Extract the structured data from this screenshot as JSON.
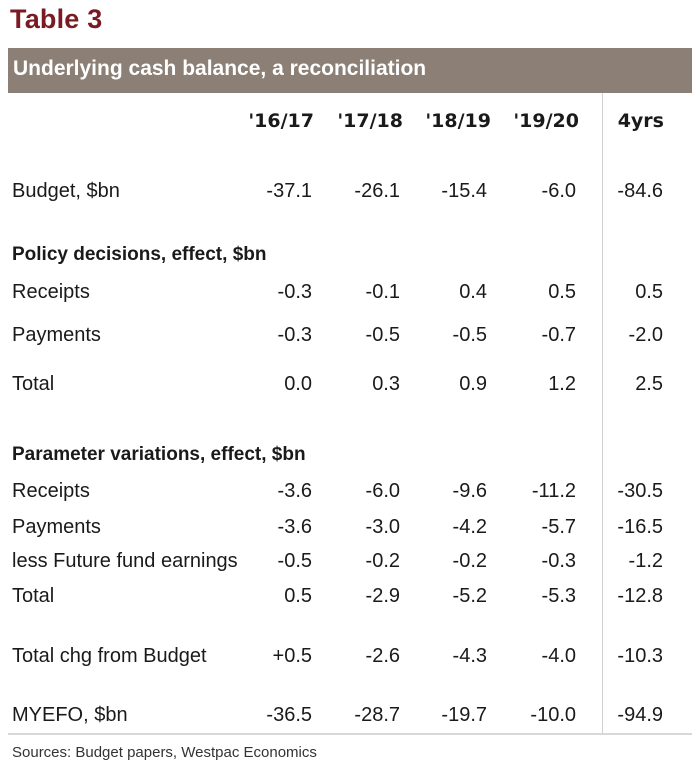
{
  "title": "Table 3",
  "subtitle": "Underlying cash balance, a reconciliation",
  "columns": [
    "'16/17",
    "'17/18",
    "'18/19",
    "'19/20",
    "4yrs"
  ],
  "rows": [
    {
      "type": "data",
      "label": "Budget, $bn",
      "values": [
        "-37.1",
        "-26.1",
        "-15.4",
        "-6.0",
        "-84.6"
      ]
    },
    {
      "type": "section",
      "label": "Policy decisions, effect, $bn",
      "values": []
    },
    {
      "type": "data",
      "label": "Receipts",
      "values": [
        "-0.3",
        "-0.1",
        "0.4",
        "0.5",
        "0.5"
      ]
    },
    {
      "type": "data",
      "label": "Payments",
      "values": [
        "-0.3",
        "-0.5",
        "-0.5",
        "-0.7",
        "-2.0"
      ]
    },
    {
      "type": "data",
      "label": "Total",
      "values": [
        "0.0",
        "0.3",
        "0.9",
        "1.2",
        "2.5"
      ]
    },
    {
      "type": "section",
      "label": "Parameter variations, effect, $bn",
      "values": []
    },
    {
      "type": "data",
      "label": "Receipts",
      "values": [
        "-3.6",
        "-6.0",
        "-9.6",
        "-11.2",
        "-30.5"
      ]
    },
    {
      "type": "data",
      "label": "Payments",
      "values": [
        "-3.6",
        "-3.0",
        "-4.2",
        "-5.7",
        "-16.5"
      ]
    },
    {
      "type": "data",
      "label": "less Future fund earnings",
      "values": [
        "-0.5",
        "-0.2",
        "-0.2",
        "-0.3",
        "-1.2"
      ]
    },
    {
      "type": "data",
      "label": "Total",
      "values": [
        "0.5",
        "-2.9",
        "-5.2",
        "-5.3",
        "-12.8"
      ]
    },
    {
      "type": "data",
      "label": "Total chg from Budget",
      "values": [
        "+0.5",
        "-2.6",
        "-4.3",
        "-4.0",
        "-10.3"
      ]
    },
    {
      "type": "data",
      "label": "MYEFO, $bn",
      "values": [
        "-36.5",
        "-28.7",
        "-19.7",
        "-10.0",
        "-94.9"
      ]
    }
  ],
  "source": "Sources: Budget papers, Westpac Economics",
  "colors": {
    "title": "#7a1a22",
    "band": "#8c7f75",
    "band_text": "#ffffff",
    "divider": "#cfcfcf"
  }
}
